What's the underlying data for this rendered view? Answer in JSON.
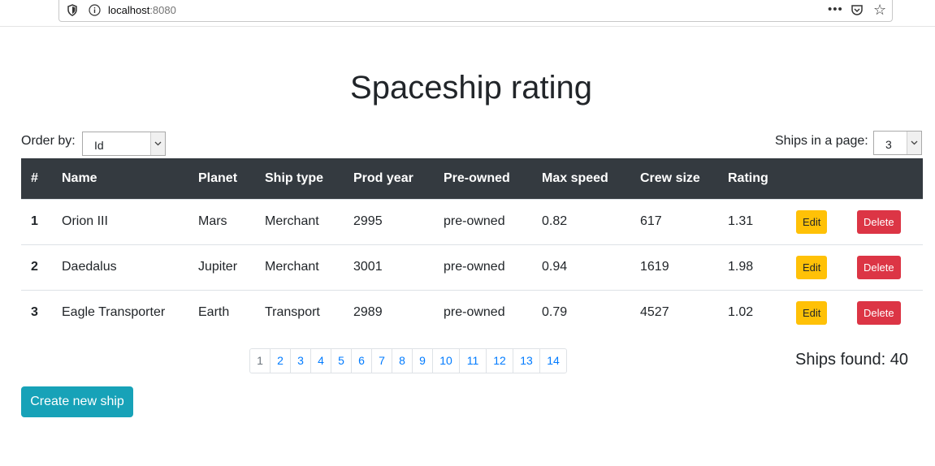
{
  "browser": {
    "url_host": "localhost",
    "url_port": ":8080"
  },
  "page": {
    "title": "Spaceship rating",
    "order_label": "Order by:",
    "order_value": "Id",
    "pagesize_label": "Ships in a page:",
    "pagesize_value": "3"
  },
  "table": {
    "headers": [
      "#",
      "Name",
      "Planet",
      "Ship type",
      "Prod year",
      "Pre-owned",
      "Max speed",
      "Crew size",
      "Rating",
      "",
      ""
    ],
    "rows": [
      {
        "id": "1",
        "name": "Orion III",
        "planet": "Mars",
        "type": "Merchant",
        "year": "2995",
        "used": "pre-owned",
        "speed": "0.82",
        "crew": "617",
        "rating": "1.31"
      },
      {
        "id": "2",
        "name": "Daedalus",
        "planet": "Jupiter",
        "type": "Merchant",
        "year": "3001",
        "used": "pre-owned",
        "speed": "0.94",
        "crew": "1619",
        "rating": "1.98"
      },
      {
        "id": "3",
        "name": "Eagle Transporter",
        "planet": "Earth",
        "type": "Transport",
        "year": "2989",
        "used": "pre-owned",
        "speed": "0.79",
        "crew": "4527",
        "rating": "1.02"
      }
    ],
    "edit_label": "Edit",
    "delete_label": "Delete"
  },
  "pagination": {
    "pages": [
      "1",
      "2",
      "3",
      "4",
      "5",
      "6",
      "7",
      "8",
      "9",
      "10",
      "11",
      "12",
      "13",
      "14"
    ],
    "current": "1"
  },
  "summary": {
    "ships_found": "Ships found: 40"
  },
  "actions": {
    "create_label": "Create new ship"
  },
  "colors": {
    "header_bg": "#343a40",
    "edit": "#ffc107",
    "delete": "#dc3545",
    "create": "#17a2b8",
    "link": "#007bff"
  }
}
